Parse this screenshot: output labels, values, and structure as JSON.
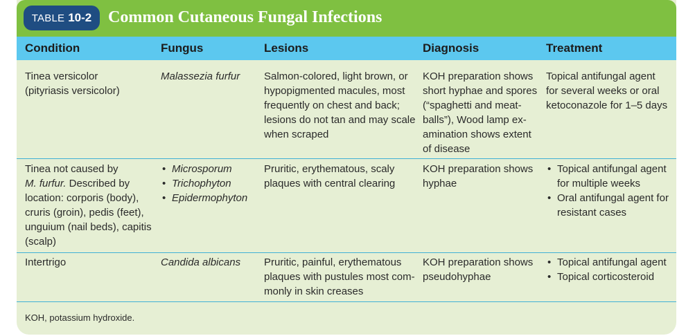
{
  "table": {
    "label_word": "TABLE",
    "label_number": "10-2",
    "title": "Common Cutaneous Fungal Infections"
  },
  "columns": [
    "Condition",
    "Fungus",
    "Lesions",
    "Diagnosis",
    "Treatment"
  ],
  "rows": [
    {
      "condition": [
        "Tinea versicolor",
        "(pityriasis versicolor)"
      ],
      "fungus": [
        "Malassezia furfur"
      ],
      "lesions": [
        "Salmon-colored, light brown, or",
        "hypopigmented macules, most",
        "frequently on chest and back;",
        "lesions do not tan and may scale",
        "when scraped"
      ],
      "diagnosis": [
        "KOH preparation shows",
        "short hyphae and spores",
        "(“spaghetti and meat-",
        "balls”), Wood lamp ex-",
        "amination shows extent",
        "of disease"
      ],
      "treatment": [
        "Topical antifungal agent",
        "for several weeks or oral",
        "ketoconazole for 1–5 days"
      ]
    },
    {
      "condition": [
        "Tinea not caused by",
        "M. furfur.",
        " Described by",
        "location: corporis (body),",
        "cruris (groin), pedis (feet),",
        "unguium (nail beds), capitis",
        "(scalp)"
      ],
      "fungus": [
        "Microsporum",
        "Trichophyton",
        "Epidermophyton"
      ],
      "lesions": [
        "Pruritic, erythematous, scaly",
        "plaques with central clearing"
      ],
      "diagnosis": [
        "KOH preparation shows",
        "hyphae"
      ],
      "treatment": [
        [
          "Topical antifungal agent",
          "for multiple weeks"
        ],
        [
          "Oral antifungal agent for",
          "resistant cases"
        ]
      ]
    },
    {
      "condition": [
        "Intertrigo"
      ],
      "fungus": [
        "Candida albicans"
      ],
      "lesions": [
        "Pruritic, painful, erythematous",
        "plaques with pustules most com-",
        "monly in skin creases"
      ],
      "diagnosis": [
        "KOH preparation shows",
        "pseudohyphae"
      ],
      "treatment": [
        "Topical antifungal agent",
        "Topical corticosteroid"
      ]
    }
  ],
  "footnote": "KOH, potassium hydroxide.",
  "colors": {
    "title_bar": "#7fc041",
    "label_pill": "#1f4d82",
    "header_row": "#5cc8ef",
    "body_bg": "#e6efd4",
    "rule": "#3fb0d6"
  }
}
